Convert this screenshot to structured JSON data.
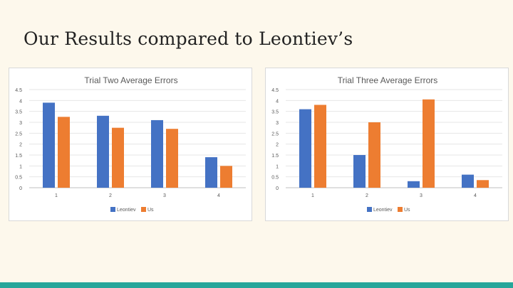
{
  "slide": {
    "title": "Our Results compared to Leontiev’s"
  },
  "colors": {
    "leontiev": "#4472c4",
    "us": "#ed7d31",
    "background": "#fdf8ec",
    "bottom_bar": "#26a69a"
  },
  "chart_data": [
    {
      "type": "bar",
      "title": "Trial Two Average Errors",
      "categories": [
        "1",
        "2",
        "3",
        "4"
      ],
      "series": [
        {
          "name": "Leontiev",
          "legend_label": "Leontiev",
          "color": "#4472c4",
          "values": [
            3.9,
            3.3,
            3.1,
            1.4
          ]
        },
        {
          "name": "Us",
          "legend_label": "Us",
          "color": "#ed7d31",
          "values": [
            3.25,
            2.75,
            2.7,
            1.0
          ]
        }
      ],
      "yticks": [
        "0",
        "0.5",
        "1",
        "1.5",
        "2",
        "2.5",
        "3",
        "3.5",
        "4",
        "4.5"
      ],
      "ylim": [
        0,
        4.5
      ],
      "grid": true,
      "legend": "bottom"
    },
    {
      "type": "bar",
      "title": "Trial Three Average Errors",
      "categories": [
        "1",
        "2",
        "3",
        "4"
      ],
      "series": [
        {
          "name": "Leontiev",
          "legend_label": "Leontiev",
          "color": "#4472c4",
          "values": [
            3.6,
            1.5,
            0.3,
            0.6
          ]
        },
        {
          "name": "Us",
          "legend_label": "Us",
          "color": "#ed7d31",
          "values": [
            3.8,
            3.0,
            4.05,
            0.35
          ]
        }
      ],
      "yticks": [
        "0",
        "0.5",
        "1",
        "1.5",
        "2",
        "2.5",
        "3",
        "3.5",
        "4",
        "4.5"
      ],
      "ylim": [
        0,
        4.5
      ],
      "grid": true,
      "legend": "bottom"
    }
  ]
}
